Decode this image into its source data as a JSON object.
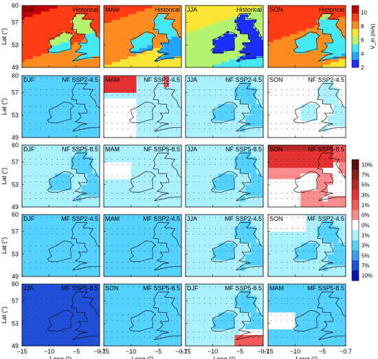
{
  "chart_data": {
    "type": "heatmap",
    "xlabel": "Long (°)",
    "ylabel": "Lat (°)",
    "xlim": [
      -15,
      -0.7
    ],
    "ylim": [
      49,
      60
    ],
    "x_ticks": [
      -15,
      -10,
      -5,
      -0.7
    ],
    "x_tick_labels": [
      "−15",
      "−10",
      "−5",
      "−0.7"
    ],
    "y_ticks": [
      49,
      53,
      57,
      60
    ],
    "y_tick_labels": [
      "49",
      "53",
      "57",
      "60"
    ],
    "top_colorbar": {
      "label": "V_m (m/s)",
      "min": 2,
      "max": 11,
      "ticks": [
        2,
        4,
        6,
        8,
        10
      ],
      "tick_labels": [
        "2",
        "4",
        "6",
        "8",
        "10"
      ],
      "colors": [
        "#1a2fff",
        "#21a5ff",
        "#44e8f3",
        "#b5f36e",
        "#fae632",
        "#ff8c1e",
        "#ff3c14",
        "#c00000"
      ]
    },
    "change_colorbar": {
      "label": "",
      "tick_labels": [
        "10%",
        "7%",
        "5%",
        "3%",
        "1%",
        "0%",
        "0%",
        "1%",
        "3%",
        "5%",
        "7%",
        "10%"
      ],
      "colors": [
        "#5a0e0e",
        "#8a1e1e",
        "#bb2828",
        "#e63232",
        "#f55a5a",
        "#ff8c8c",
        "#ffffff",
        "#aaf0ff",
        "#55d2ff",
        "#3aa0f0",
        "#2050d8",
        "#0a14b4"
      ]
    },
    "panels": [
      [
        {
          "season": "DJF",
          "scenario": "Historical",
          "fill": "hist",
          "mean": 9
        },
        {
          "season": "MAM",
          "scenario": "Historical",
          "fill": "hist",
          "mean": 8
        },
        {
          "season": "JJA",
          "scenario": "Historical",
          "fill": "hist",
          "mean": 6
        },
        {
          "season": "SON",
          "scenario": "Historical",
          "fill": "hist",
          "mean": 8.5
        }
      ],
      [
        {
          "season": "DJF",
          "scenario": "NF SSP2-4.5",
          "fill": "blue",
          "mean": -4
        },
        {
          "season": "MAM",
          "scenario": "NF SSP2-4.5",
          "fill": "mixed-red-nw",
          "mean": -2
        },
        {
          "season": "JJA",
          "scenario": "NF SSP2-4.5",
          "fill": "light-blue",
          "mean": -3
        },
        {
          "season": "SON",
          "scenario": "NF SSP2-4.5",
          "fill": "white-west",
          "mean": -1
        }
      ],
      [
        {
          "season": "DJF",
          "scenario": "NF SSP5-8.5",
          "fill": "light-blue",
          "mean": -3
        },
        {
          "season": "MAM",
          "scenario": "NF SSP5-8.5",
          "fill": "white-west-small",
          "mean": -2
        },
        {
          "season": "JJA",
          "scenario": "NF SSP5-8.5",
          "fill": "light-blue",
          "mean": -3
        },
        {
          "season": "SON",
          "scenario": "NF SSP5-8.5",
          "fill": "red-north",
          "mean": 1
        }
      ],
      [
        {
          "season": "DJF",
          "scenario": "MF SSP2-4.5",
          "fill": "blue",
          "mean": -4
        },
        {
          "season": "MAM",
          "scenario": "MF SSP2-4.5",
          "fill": "blue",
          "mean": -4
        },
        {
          "season": "JJA",
          "scenario": "MF SSP2-4.5",
          "fill": "light-blue",
          "mean": -4
        },
        {
          "season": "SON",
          "scenario": "MF SSP2-4.5",
          "fill": "white-nw",
          "mean": -3
        }
      ],
      [
        {
          "season": "JJA",
          "scenario": "MF SSP5-8.5",
          "fill": "dark-blue",
          "mean": -7
        },
        {
          "season": "SON",
          "scenario": "MF SSP5-8.5",
          "fill": "blue",
          "mean": -4
        },
        {
          "season": "DJF",
          "scenario": "MF SSP5-8.5",
          "fill": "red-south",
          "mean": -3
        },
        {
          "season": "MAM",
          "scenario": "MF SSP5-8.5",
          "fill": "white-west-mid",
          "mean": -4
        }
      ]
    ]
  }
}
